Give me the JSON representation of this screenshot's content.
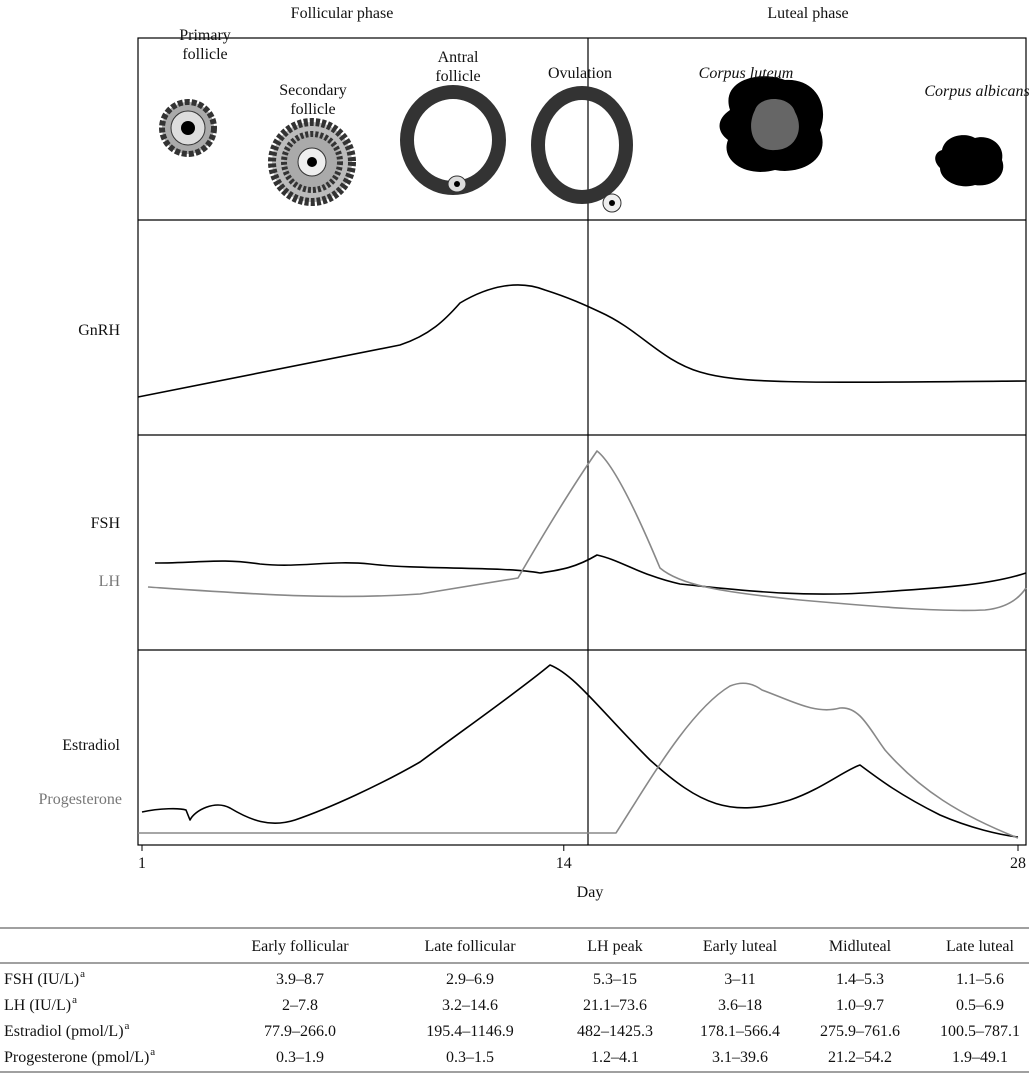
{
  "phases": [
    "Follicular phase",
    "Luteal phase"
  ],
  "stages": [
    {
      "lines": [
        "Primary",
        "follicle"
      ]
    },
    {
      "lines": [
        "Secondary",
        "follicle"
      ]
    },
    {
      "lines": [
        "Antral",
        "follicle"
      ]
    },
    {
      "lines": [
        "Ovulation"
      ]
    },
    {
      "lines": [
        "Corpus luteum"
      ]
    },
    {
      "lines": [
        "Corpus albicans"
      ]
    }
  ],
  "panels": [
    "GnRH",
    "FSH",
    "LH",
    "Estradiol",
    "Progesterone"
  ],
  "x_axis": {
    "ticks": [
      1,
      14,
      28
    ],
    "label": "Day"
  },
  "table": {
    "columns": [
      "Early follicular",
      "Late follicular",
      "LH peak",
      "Early luteal",
      "Midluteal",
      "Late luteal"
    ],
    "rows": [
      {
        "label": "FSH (IU/L)",
        "note": "a",
        "cells": [
          "3.9–8.7",
          "2.9–6.9",
          "5.3–15",
          "3–11",
          "1.4–5.3",
          "1.1–5.6"
        ]
      },
      {
        "label": "LH (IU/L)",
        "note": "a",
        "cells": [
          "2–7.8",
          "3.2–14.6",
          "21.1–73.6",
          "3.6–18",
          "1.0–9.7",
          "0.5–6.9"
        ]
      },
      {
        "label": "Estradiol (pmol/L)",
        "note": "a",
        "cells": [
          "77.9–266.0",
          "195.4–1146.9",
          "482–1425.3",
          "178.1–566.4",
          "275.9–761.6",
          "100.5–787.1"
        ]
      },
      {
        "label": "Progesterone (pmol/L)",
        "note": "a",
        "cells": [
          "0.3–1.9",
          "0.3–1.5",
          "1.2–4.1",
          "3.1–39.6",
          "21.2–54.2",
          "1.9–49.1"
        ]
      }
    ]
  }
}
